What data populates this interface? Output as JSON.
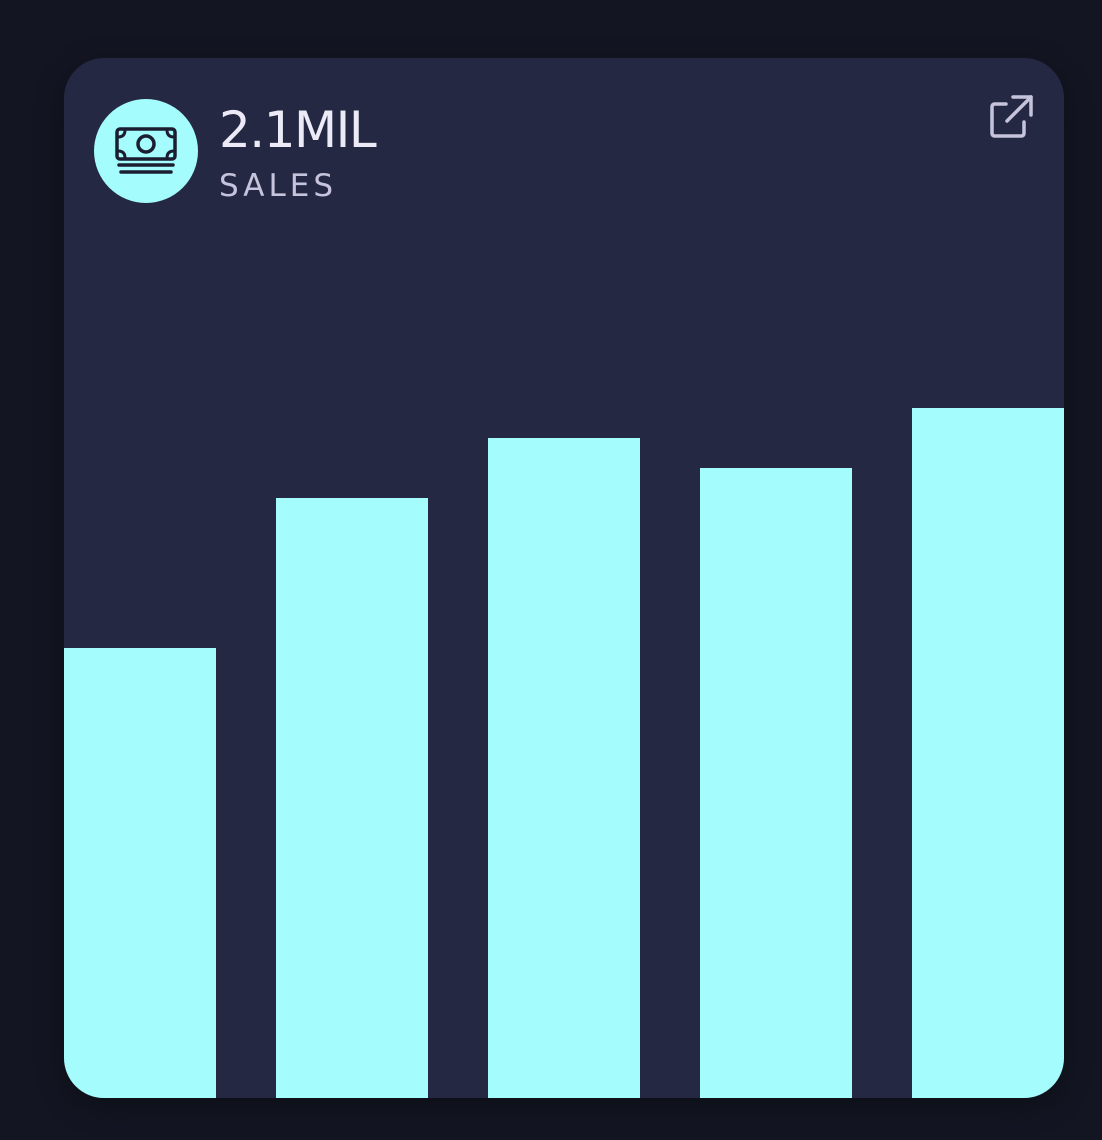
{
  "widget": {
    "value": "2.1MIL",
    "label": "SALES",
    "icon": "money-bill-icon",
    "action_icon": "external-link-icon"
  },
  "colors": {
    "page_background": "#131622",
    "card_background": "#242842",
    "accent": "#a4fcfc",
    "value_text": "#eceaf6",
    "label_text": "#c6c4dc"
  },
  "chart_data": {
    "type": "bar",
    "categories": [
      "",
      "",
      "",
      "",
      ""
    ],
    "values": [
      45,
      60,
      66,
      63,
      69
    ],
    "ylim": [
      0,
      104
    ],
    "grid": false,
    "axes_visible": false,
    "legend": "none",
    "bar_color": "#a4fcfc"
  }
}
